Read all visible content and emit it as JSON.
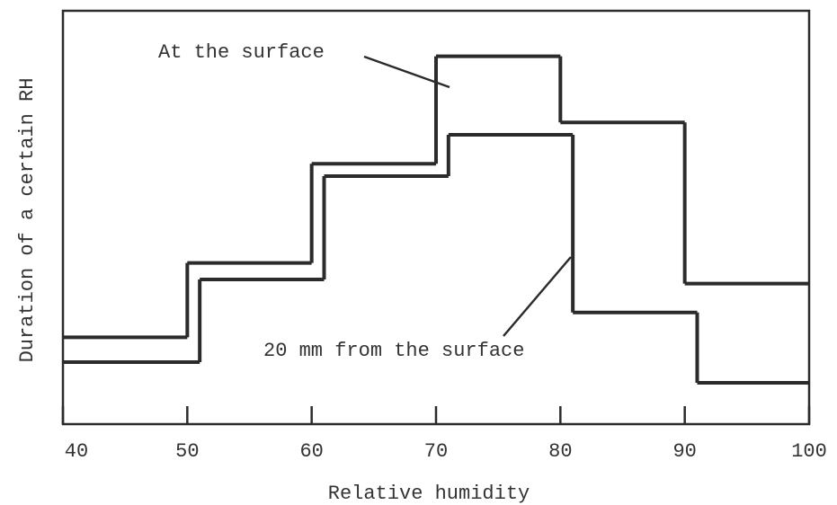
{
  "chart_data": {
    "type": "step",
    "xlabel": "Relative humidity",
    "ylabel": "Duration of a certain RH",
    "xlim": [
      40,
      100
    ],
    "xticks": [
      40,
      50,
      60,
      70,
      80,
      90,
      100
    ],
    "ylim": [
      0,
      100
    ],
    "series": [
      {
        "name": "At the surface",
        "color": "#2b2b2b",
        "bins": [
          40,
          50,
          60,
          70,
          80,
          90,
          100
        ],
        "values": [
          21,
          39,
          63,
          89,
          73,
          34
        ]
      },
      {
        "name": "20 mm from the surface",
        "color": "#2b2b2b",
        "bins": [
          40,
          51,
          61,
          71,
          81,
          91,
          100
        ],
        "values": [
          15,
          35,
          60,
          70,
          27,
          10
        ]
      }
    ]
  }
}
